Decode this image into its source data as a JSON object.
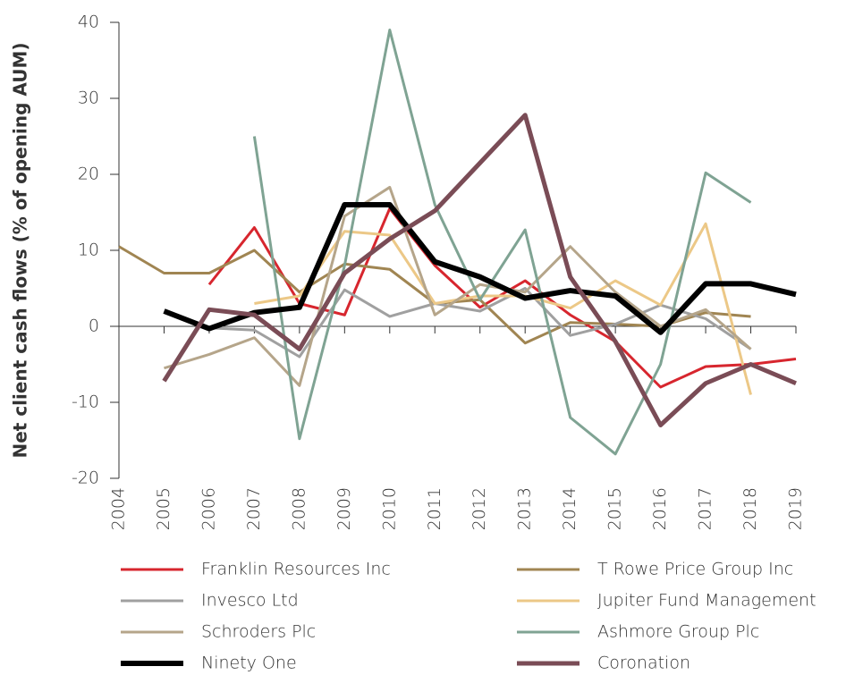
{
  "chart_data": {
    "type": "line",
    "y_label": "Net client cash flows (% of opening AUM)",
    "x": [
      2004,
      2005,
      2006,
      2007,
      2008,
      2009,
      2010,
      2011,
      2012,
      2013,
      2014,
      2015,
      2016,
      2017,
      2018,
      2019
    ],
    "xlim": [
      2004,
      2019
    ],
    "xticks": [
      2004,
      2005,
      2006,
      2007,
      2008,
      2009,
      2010,
      2011,
      2012,
      2013,
      2014,
      2015,
      2016,
      2017,
      2018,
      2019
    ],
    "ylim": [
      -20,
      40
    ],
    "yticks": [
      -20,
      -10,
      0,
      10,
      20,
      30,
      40
    ],
    "series": [
      {
        "name": "Franklin Resources Inc",
        "color": "#d7262e",
        "width": 3,
        "values": [
          null,
          null,
          5.5,
          13,
          3,
          1.5,
          15.5,
          8,
          2.5,
          6,
          1.5,
          -2,
          -8,
          -5.3,
          -5,
          -4.3
        ]
      },
      {
        "name": "T Rowe Price Group Inc",
        "color": "#a08552",
        "width": 3,
        "values": [
          10.5,
          7,
          7,
          10,
          4.5,
          8.2,
          7.5,
          3,
          3.5,
          -2.2,
          0.5,
          0.3,
          0,
          1.8,
          1.3,
          null
        ]
      },
      {
        "name": "Invesco Ltd",
        "color": "#a0a0a0",
        "width": 3,
        "values": [
          null,
          null,
          -0.2,
          -0.5,
          -4,
          4.8,
          1.3,
          3,
          2,
          5,
          -1.2,
          0.3,
          2.8,
          1,
          -3,
          null
        ]
      },
      {
        "name": "Jupiter Fund Management",
        "color": "#ecc887",
        "width": 3,
        "values": [
          null,
          null,
          null,
          3,
          4,
          12.5,
          12,
          3,
          4,
          4,
          2.4,
          6,
          2.8,
          13.5,
          -9,
          null
        ]
      },
      {
        "name": "Schroders Plc",
        "color": "#b5a58a",
        "width": 3,
        "values": [
          null,
          -5.5,
          -3.7,
          -1.5,
          -7.8,
          14.5,
          18.3,
          1.5,
          5.5,
          4.5,
          10.5,
          4.5,
          0,
          2.2,
          -3,
          null
        ]
      },
      {
        "name": "Ashmore Group Plc",
        "color": "#7fa393",
        "width": 3,
        "values": [
          null,
          null,
          null,
          25,
          -14.8,
          8,
          39,
          16,
          3.5,
          12.7,
          -12,
          -16.8,
          -5,
          20.2,
          16.3,
          null
        ]
      },
      {
        "name": "Ninety One",
        "color": "#000000",
        "width": 6,
        "values": [
          null,
          2,
          -0.3,
          1.8,
          2.5,
          16,
          16,
          8.5,
          6.5,
          3.7,
          4.7,
          4,
          -0.8,
          5.6,
          5.6,
          4.2
        ]
      },
      {
        "name": "Coronation",
        "color": "#7a4c56",
        "width": 5,
        "values": [
          null,
          -7.2,
          2.2,
          1.5,
          -3,
          7,
          11.5,
          15.2,
          21.5,
          27.8,
          6.5,
          -2,
          -13,
          -7.5,
          -5,
          -7.5
        ]
      }
    ]
  }
}
